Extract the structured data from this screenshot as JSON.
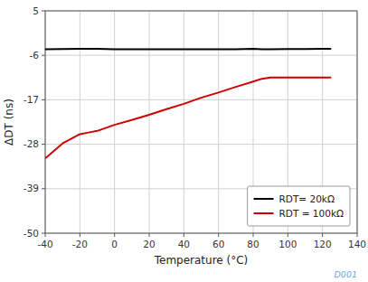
{
  "chart_data": {
    "type": "line",
    "xlabel": "Temperature (°C)",
    "ylabel": "ΔDT (ns)",
    "series": [
      {
        "name": "RDT= 20kΩ",
        "color": "#000000",
        "x": [
          -40,
          -20,
          -10,
          0,
          10,
          20,
          30,
          40,
          50,
          60,
          70,
          80,
          85,
          90,
          100,
          110,
          120,
          125
        ],
        "values": [
          -4.5,
          -4.4,
          -4.4,
          -4.5,
          -4.5,
          -4.5,
          -4.5,
          -4.5,
          -4.5,
          -4.5,
          -4.5,
          -4.4,
          -4.5,
          -4.5,
          -4.45,
          -4.45,
          -4.4,
          -4.4
        ]
      },
      {
        "name": "RDT = 100kΩ",
        "color": "#cc0000",
        "x": [
          -40,
          -30,
          -20,
          -15,
          -10,
          0,
          10,
          20,
          30,
          40,
          50,
          60,
          70,
          80,
          85,
          90,
          100,
          110,
          120,
          125
        ],
        "values": [
          -31.5,
          -27.8,
          -25.5,
          -25.1,
          -24.7,
          -23.2,
          -22.0,
          -20.7,
          -19.3,
          -18.0,
          -16.5,
          -15.2,
          -13.8,
          -12.5,
          -11.8,
          -11.5,
          -11.5,
          -11.5,
          -11.5,
          -11.5
        ]
      }
    ],
    "xlim": [
      -40,
      140
    ],
    "ylim": [
      -50,
      5
    ],
    "xticks": [
      -40,
      -20,
      0,
      20,
      40,
      60,
      80,
      100,
      120,
      140
    ],
    "yticks": [
      5,
      -6,
      -17,
      -28,
      -39,
      -50
    ],
    "grid": true,
    "legend": "lower right",
    "annotations": [
      "D001"
    ]
  }
}
